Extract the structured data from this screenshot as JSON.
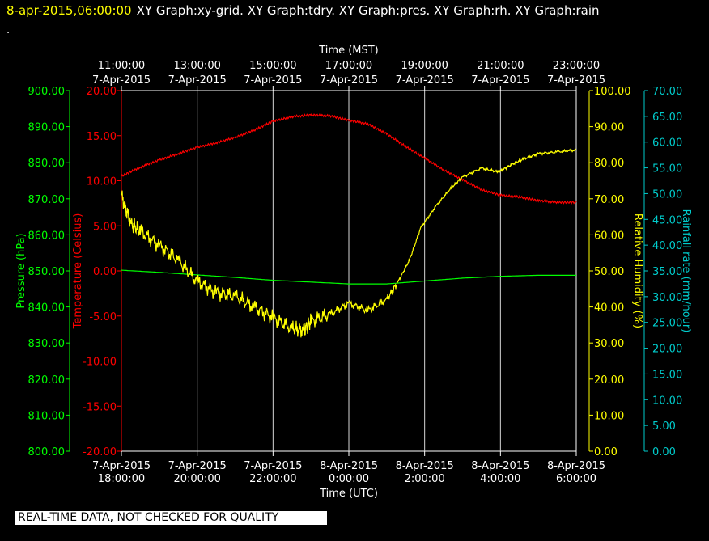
{
  "header": {
    "datetime": "8-apr-2015,06:00:00",
    "graphs": "XY Graph:xy-grid.  XY Graph:tdry.  XY Graph:pres.  XY Graph:rh.  XY Graph:rain",
    "dot": "."
  },
  "footer": {
    "quality_notice": "REAL-TIME DATA, NOT CHECKED FOR QUALITY"
  },
  "colors": {
    "pressure": "#00ff00",
    "temperature": "#ff0000",
    "humidity": "#ffff00",
    "rain": "#00cccc",
    "grid": "#ffffff",
    "background": "#000000"
  },
  "chart_data": {
    "type": "line",
    "top_axis": {
      "label": "Time (MST)",
      "ticks": [
        {
          "time": "11:00:00",
          "date": "7-Apr-2015"
        },
        {
          "time": "13:00:00",
          "date": "7-Apr-2015"
        },
        {
          "time": "15:00:00",
          "date": "7-Apr-2015"
        },
        {
          "time": "17:00:00",
          "date": "7-Apr-2015"
        },
        {
          "time": "19:00:00",
          "date": "7-Apr-2015"
        },
        {
          "time": "21:00:00",
          "date": "7-Apr-2015"
        },
        {
          "time": "23:00:00",
          "date": "7-Apr-2015"
        }
      ]
    },
    "bottom_axis": {
      "label": "Time (UTC)",
      "ticks": [
        {
          "date": "7-Apr-2015",
          "time": "18:00:00"
        },
        {
          "date": "7-Apr-2015",
          "time": "20:00:00"
        },
        {
          "date": "7-Apr-2015",
          "time": "22:00:00"
        },
        {
          "date": "8-Apr-2015",
          "time": "0:00:00"
        },
        {
          "date": "8-Apr-2015",
          "time": "2:00:00"
        },
        {
          "date": "8-Apr-2015",
          "time": "4:00:00"
        },
        {
          "date": "8-Apr-2015",
          "time": "6:00:00"
        }
      ]
    },
    "x_range_utc_hours": [
      18,
      30
    ],
    "grid": true,
    "axes": {
      "pressure": {
        "label": "Pressure (hPa)",
        "range": [
          800,
          900
        ],
        "ticks": [
          "800.00",
          "810.00",
          "820.00",
          "830.00",
          "840.00",
          "850.00",
          "860.00",
          "870.00",
          "880.00",
          "890.00",
          "900.00"
        ]
      },
      "temperature": {
        "label": "Temperature (Celsius)",
        "range": [
          -20,
          20
        ],
        "ticks": [
          "-20.00",
          "-15.00",
          "-10.00",
          "-5.00",
          "0.00",
          "5.00",
          "10.00",
          "15.00",
          "20.00"
        ]
      },
      "humidity": {
        "label": "Relative Humidity (%)",
        "range": [
          0,
          100
        ],
        "ticks": [
          "0.00",
          "10.00",
          "20.00",
          "30.00",
          "40.00",
          "50.00",
          "60.00",
          "70.00",
          "80.00",
          "90.00",
          "100.00"
        ]
      },
      "rain": {
        "label": "Rainfall rate (mm/hour)",
        "range": [
          0,
          70
        ],
        "ticks": [
          "0.00",
          "5.00",
          "10.00",
          "15.00",
          "20.00",
          "25.00",
          "30.00",
          "35.00",
          "40.00",
          "45.00",
          "50.00",
          "55.00",
          "60.00",
          "65.00",
          "70.00"
        ]
      }
    },
    "series": [
      {
        "key": "temperature",
        "axis": "temperature",
        "x": [
          18,
          18.5,
          19,
          19.5,
          20,
          20.5,
          21,
          21.5,
          22,
          22.5,
          23,
          23.5,
          24,
          24.5,
          25,
          25.5,
          26,
          26.5,
          27,
          27.5,
          28,
          28.5,
          29,
          29.5,
          30
        ],
        "y": [
          10.5,
          11.5,
          12.3,
          13,
          13.7,
          14.2,
          14.8,
          15.6,
          16.6,
          17.1,
          17.3,
          17.2,
          16.7,
          16.3,
          15.2,
          13.8,
          12.5,
          11.2,
          10.1,
          9,
          8.4,
          8.2,
          7.8,
          7.6,
          7.6
        ]
      },
      {
        "key": "pressure",
        "axis": "pressure",
        "x": [
          18,
          19,
          20,
          21,
          22,
          23,
          24,
          25,
          26,
          27,
          28,
          29,
          30
        ],
        "y": [
          850.2,
          849.6,
          848.9,
          848.2,
          847.4,
          846.9,
          846.4,
          846.4,
          847.2,
          848,
          848.5,
          848.8,
          848.8
        ]
      },
      {
        "key": "humidity",
        "axis": "humidity",
        "x": [
          18,
          18.25,
          18.5,
          19,
          19.5,
          20,
          20.5,
          21,
          21.5,
          22,
          22.5,
          22.8,
          23,
          23.5,
          24,
          24.5,
          25,
          25.3,
          25.6,
          25.9,
          26.3,
          26.7,
          27,
          27.5,
          27.9,
          28,
          28.3,
          28.6,
          29,
          29.5,
          30
        ],
        "y": [
          71,
          63,
          61,
          57,
          53,
          47,
          44,
          43,
          40,
          37,
          34,
          33.5,
          36,
          38,
          41,
          39,
          42,
          47,
          53,
          62,
          68,
          73,
          76,
          78.5,
          77.5,
          77.7,
          79.5,
          81,
          82.5,
          83,
          83.5
        ]
      },
      {
        "key": "rain",
        "axis": "rain",
        "x": [],
        "y": []
      }
    ]
  }
}
